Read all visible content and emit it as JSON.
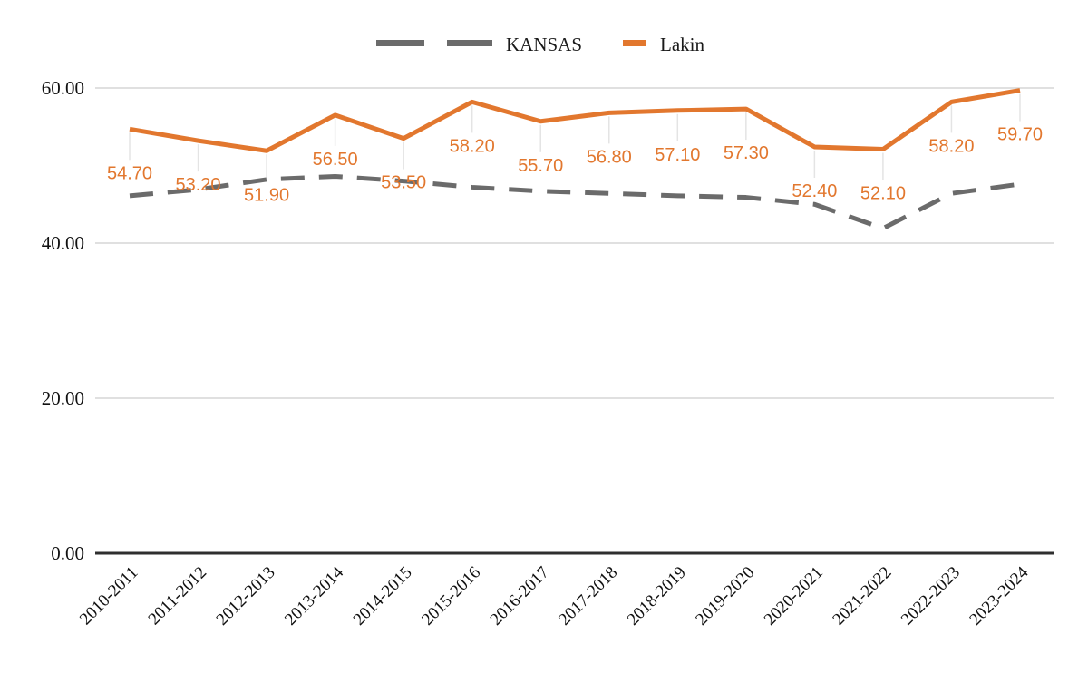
{
  "chart_data": {
    "type": "line",
    "title": "",
    "categories": [
      "2010-2011",
      "2011-2012",
      "2012-2013",
      "2013-2014",
      "2014-2015",
      "2015-2016",
      "2016-2017",
      "2017-2018",
      "2018-2019",
      "2019-2020",
      "2020-2021",
      "2021-2022",
      "2022-2023",
      "2023-2024"
    ],
    "series": [
      {
        "name": "KANSAS",
        "color": "#6b6b6b",
        "line_style": "dashed",
        "values": [
          46.1,
          46.9,
          48.2,
          48.6,
          48.0,
          47.2,
          46.7,
          46.4,
          46.1,
          45.9,
          45.0,
          41.9,
          46.4,
          47.6
        ],
        "labels_visible": false
      },
      {
        "name": "Lakin",
        "color": "#e2772e",
        "line_style": "solid",
        "values": [
          54.7,
          53.2,
          51.9,
          56.5,
          53.5,
          58.2,
          55.7,
          56.8,
          57.1,
          57.3,
          52.4,
          52.1,
          58.2,
          59.7
        ],
        "labels_visible": true,
        "labels": [
          "54.70",
          "53.20",
          "51.90",
          "56.50",
          "53.50",
          "58.20",
          "55.70",
          "56.80",
          "57.10",
          "57.30",
          "52.40",
          "52.10",
          "58.20",
          "59.70"
        ]
      }
    ],
    "xlabel": "",
    "ylabel": "",
    "y_ticks": [
      {
        "value": 60,
        "label": "60.00"
      },
      {
        "value": 40,
        "label": "40.00"
      },
      {
        "value": 20,
        "label": "20.00"
      },
      {
        "value": 0,
        "label": "0.00"
      }
    ],
    "ylim": [
      0,
      60
    ],
    "grid": true,
    "legend_position": "top"
  },
  "colors": {
    "background": "#ffffff",
    "gridline": "#d6d6d6",
    "zero_axis": "#2e2e2e",
    "leader_line": "#e4e4e4",
    "kansas_gray": "#6b6b6b",
    "lakin_orange": "#e2772e",
    "axis_text": "#111111"
  }
}
